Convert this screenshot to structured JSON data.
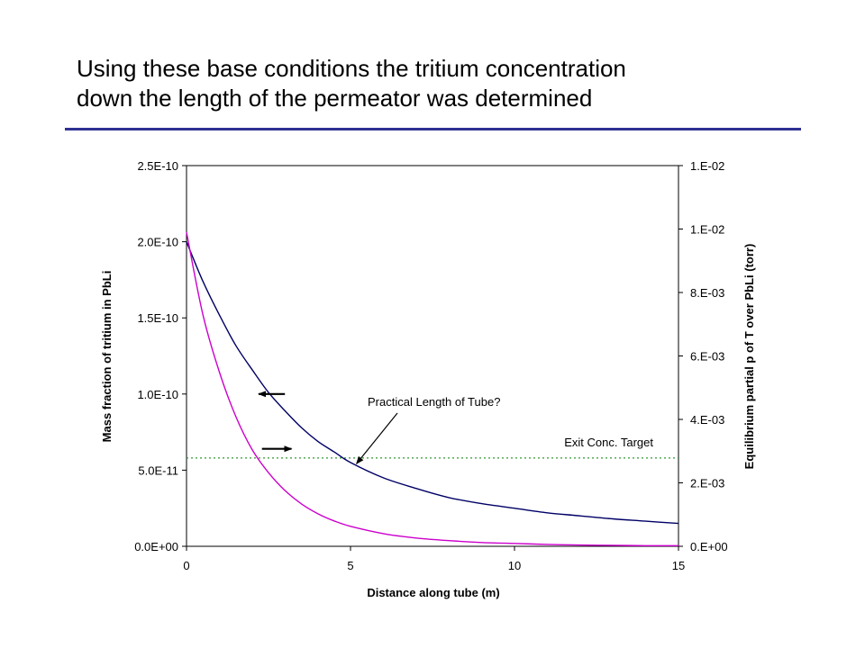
{
  "slide": {
    "title_line1": "Using these base conditions the tritium concentration",
    "title_line2": "down the length of the permeator was determined"
  },
  "colors": {
    "title_rule": "#2e3192",
    "series_mass_fraction": "#000066",
    "series_partial_pressure": "#cc00cc",
    "target_line": "#339933"
  },
  "chart_data": {
    "type": "line",
    "title": "",
    "xlabel": "Distance along tube (m)",
    "ylabel": "Mass fraction of tritium in PbLi",
    "y2label": "Equilibrium partial p of T over PbLi (torr)",
    "xlim": [
      0,
      15
    ],
    "ylim": [
      0,
      2.5e-10
    ],
    "y2lim": [
      0,
      0.012
    ],
    "grid": false,
    "x_ticks": [
      0,
      5,
      10,
      15
    ],
    "x_tick_labels": [
      "0",
      "5",
      "10",
      "15"
    ],
    "y_ticks": [
      0,
      5e-11,
      1e-10,
      1.5e-10,
      2e-10,
      2.5e-10
    ],
    "y_tick_labels": [
      "0.0E+00",
      "5.0E-11",
      "1.0E-10",
      "1.5E-10",
      "2.0E-10",
      "2.5E-10"
    ],
    "y2_ticks": [
      0,
      0.002,
      0.004,
      0.006,
      0.008,
      0.01,
      0.012
    ],
    "y2_tick_labels": [
      "0.E+00",
      "2.E-03",
      "4.E-03",
      "6.E-03",
      "8.E-03",
      "1.E-02",
      "1.E-02"
    ],
    "series": [
      {
        "axis": "left",
        "color": "#000066",
        "x": [
          0,
          0.5,
          1,
          1.5,
          2,
          2.5,
          3,
          3.5,
          4,
          4.5,
          5,
          6,
          7,
          8,
          9,
          10,
          11,
          12,
          13,
          14,
          15
        ],
        "y": [
          2e-10,
          1.74e-10,
          1.52e-10,
          1.32e-10,
          1.16e-10,
          1.01e-10,
          8.9e-11,
          7.8e-11,
          6.9e-11,
          6.2e-11,
          5.5e-11,
          4.5e-11,
          3.8e-11,
          3.2e-11,
          2.8e-11,
          2.5e-11,
          2.2e-11,
          2e-11,
          1.8e-11,
          1.65e-11,
          1.5e-11
        ]
      },
      {
        "axis": "right",
        "color": "#cc00cc",
        "x": [
          0,
          0.5,
          1,
          1.5,
          2,
          2.5,
          3,
          3.5,
          4,
          4.5,
          5,
          6,
          7,
          8,
          9,
          10,
          11,
          12,
          13,
          14,
          15
        ],
        "y": [
          0.0099,
          0.0073,
          0.0055,
          0.0041,
          0.00305,
          0.00232,
          0.00176,
          0.00134,
          0.00103,
          0.0008,
          0.00063,
          0.0004,
          0.00026,
          0.00018,
          0.00012,
          9e-05,
          6e-05,
          4e-05,
          3e-05,
          2e-05,
          2e-05
        ]
      }
    ],
    "reference_lines": [
      {
        "axis": "left",
        "y": 5.8e-11,
        "style": "dotted",
        "color": "#339933",
        "label": "Exit Conc. Target"
      }
    ],
    "annotations": [
      {
        "text": "Practical Length of Tube?",
        "points_to": {
          "x": 5.1,
          "y": 5.6e-11
        }
      }
    ],
    "axis_arrows": [
      {
        "direction": "left",
        "x": [
          2.2,
          3.0
        ],
        "y": 1e-10
      },
      {
        "direction": "right",
        "x": [
          2.3,
          3.2
        ],
        "y": 6.4e-11
      }
    ]
  }
}
